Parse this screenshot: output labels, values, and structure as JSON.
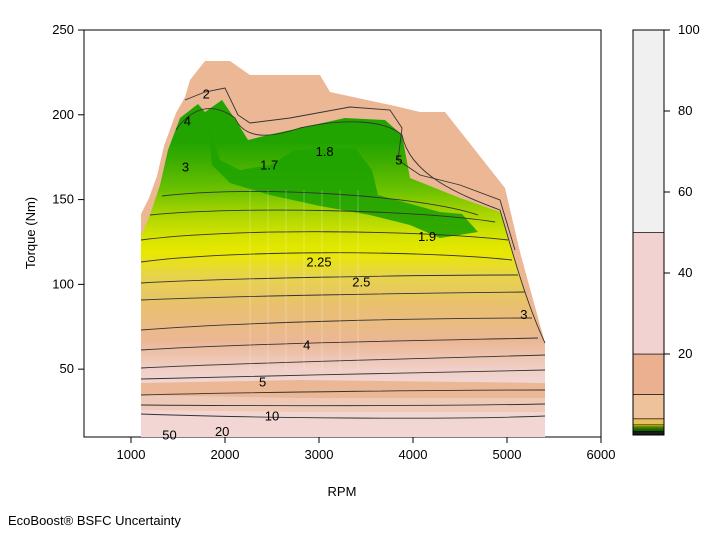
{
  "chart_data": {
    "type": "contour",
    "title": "",
    "xlabel": "RPM",
    "ylabel": "Torque (Nm)",
    "xlim": [
      500,
      6000
    ],
    "ylim": [
      10,
      250
    ],
    "xticks": [
      1000,
      2000,
      3000,
      4000,
      5000,
      6000
    ],
    "yticks": [
      50,
      100,
      150,
      200,
      250
    ],
    "contour_labels": [
      {
        "text": "1.7",
        "x": 2470,
        "y": 170
      },
      {
        "text": "1.8",
        "x": 3060,
        "y": 178
      },
      {
        "text": "1.9",
        "x": 4150,
        "y": 128
      },
      {
        "text": "2.25",
        "x": 3000,
        "y": 113
      },
      {
        "text": "2.5",
        "x": 3450,
        "y": 101
      },
      {
        "text": "3",
        "x": 5180,
        "y": 82
      },
      {
        "text": "3",
        "x": 1580,
        "y": 169
      },
      {
        "text": "4",
        "x": 2870,
        "y": 64
      },
      {
        "text": "4",
        "x": 1600,
        "y": 196
      },
      {
        "text": "5",
        "x": 2400,
        "y": 42
      },
      {
        "text": "5",
        "x": 3850,
        "y": 173
      },
      {
        "text": "10",
        "x": 2500,
        "y": 22
      },
      {
        "text": "20",
        "x": 1970,
        "y": 13
      },
      {
        "text": "50",
        "x": 1410,
        "y": 11
      },
      {
        "text": "2",
        "x": 1800,
        "y": 212
      }
    ],
    "color_scale": {
      "min": 0,
      "max": 100,
      "ticks": [
        20,
        40,
        60,
        80,
        100
      ],
      "bands": [
        {
          "from": 0,
          "to": 1,
          "color": "#1a1a1a"
        },
        {
          "from": 1,
          "to": 1.5,
          "color": "#19a300"
        },
        {
          "from": 1.5,
          "to": 2,
          "color": "#5cbf00"
        },
        {
          "from": 2,
          "to": 2.5,
          "color": "#e8e800"
        },
        {
          "from": 2.5,
          "to": 4,
          "color": "#e8c060"
        },
        {
          "from": 4,
          "to": 10,
          "color": "#eec29a"
        },
        {
          "from": 10,
          "to": 20,
          "color": "#ebb090"
        },
        {
          "from": 20,
          "to": 50,
          "color": "#f1d2d0"
        },
        {
          "from": 50,
          "to": 100,
          "color": "#f0f0f0"
        }
      ]
    }
  },
  "caption": "EcoBoost® BSFC Uncertainty"
}
